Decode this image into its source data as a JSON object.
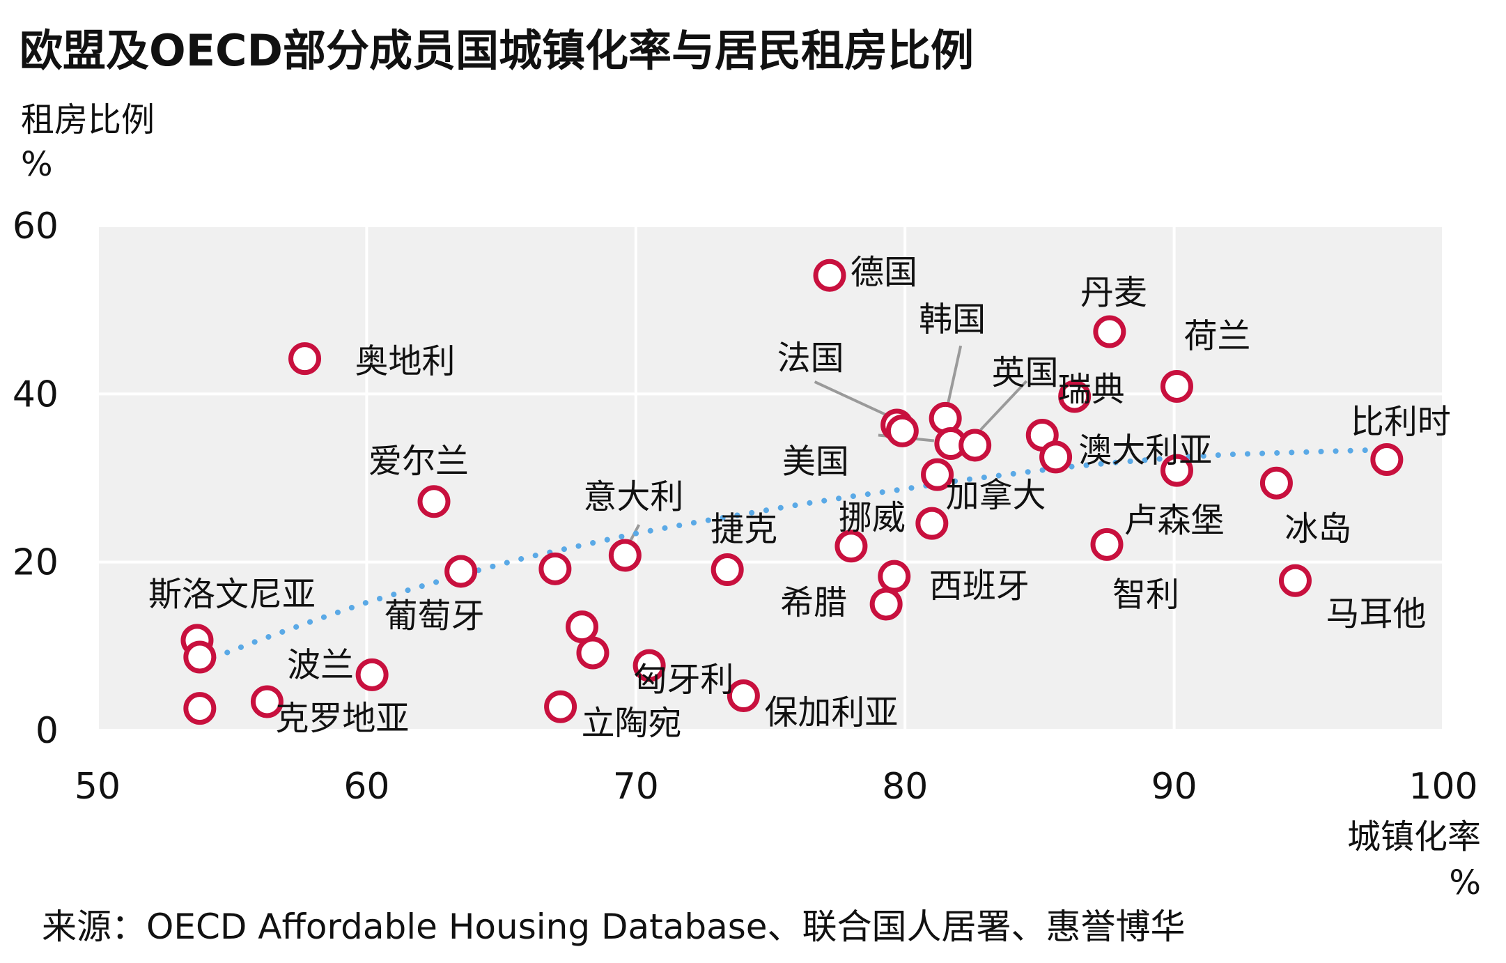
{
  "chart_data": {
    "type": "scatter",
    "title": "欧盟及OECD部分成员国城镇化率与居民租房比例",
    "ylabel": "租房比例",
    "yunit": "%",
    "xlabel": "城镇化率",
    "xunit": "%",
    "xlim": [
      50,
      100
    ],
    "ylim": [
      0,
      60
    ],
    "xticks": [
      "50",
      "60",
      "70",
      "80",
      "90",
      "100"
    ],
    "yticks": [
      "0",
      "20",
      "40",
      "60"
    ],
    "grid": true,
    "colors": {
      "marker": "#c8103e",
      "trend": "#5aa9e6",
      "plot_bg": "#f0f0f0",
      "grid": "#ffffff"
    },
    "points": [
      {
        "label": "德国",
        "x": 77.2,
        "y": 54.1
      },
      {
        "label": "韩国",
        "x": 81.5,
        "y": 37.1
      },
      {
        "label": "丹麦",
        "x": 87.6,
        "y": 47.4
      },
      {
        "label": "荷兰",
        "x": 90.1,
        "y": 40.9
      },
      {
        "label": "奥地利",
        "x": 57.7,
        "y": 44.2
      },
      {
        "label": "法国",
        "x": 79.7,
        "y": 36.3
      },
      {
        "label": "",
        "x": 79.9,
        "y": 35.6
      },
      {
        "label": "美国",
        "x": 81.7,
        "y": 34.1
      },
      {
        "label": "英国",
        "x": 82.6,
        "y": 33.9
      },
      {
        "label": "瑞典",
        "x": 86.3,
        "y": 39.7
      },
      {
        "label": "澳大利亚",
        "x": 85.1,
        "y": 35.1
      },
      {
        "label": "",
        "x": 85.6,
        "y": 32.5
      },
      {
        "label": "比利时",
        "x": 97.9,
        "y": 32.2
      },
      {
        "label": "爱尔兰",
        "x": 62.5,
        "y": 27.2
      },
      {
        "label": "加拿大",
        "x": 81.2,
        "y": 30.4
      },
      {
        "label": "卢森堡",
        "x": 90.1,
        "y": 30.9
      },
      {
        "label": "冰岛",
        "x": 93.8,
        "y": 29.4
      },
      {
        "label": "意大利",
        "x": 69.6,
        "y": 20.8
      },
      {
        "label": "挪威",
        "x": 81.0,
        "y": 24.6
      },
      {
        "label": "捷克",
        "x": 73.4,
        "y": 19.1
      },
      {
        "label": "",
        "x": 78.0,
        "y": 21.9
      },
      {
        "label": "智利",
        "x": 87.5,
        "y": 22.1
      },
      {
        "label": "斯洛文尼亚",
        "x": 53.7,
        "y": 10.7
      },
      {
        "label": "",
        "x": 53.8,
        "y": 8.7
      },
      {
        "label": "葡萄牙",
        "x": 63.5,
        "y": 18.9
      },
      {
        "label": "",
        "x": 67.0,
        "y": 19.2
      },
      {
        "label": "希腊",
        "x": 79.3,
        "y": 15.0
      },
      {
        "label": "西班牙",
        "x": 79.6,
        "y": 18.3
      },
      {
        "label": "马耳他",
        "x": 94.5,
        "y": 17.8
      },
      {
        "label": "匈牙利",
        "x": 68.0,
        "y": 12.3
      },
      {
        "label": "",
        "x": 68.4,
        "y": 9.2
      },
      {
        "label": "",
        "x": 70.5,
        "y": 7.7
      },
      {
        "label": "波兰",
        "x": 60.2,
        "y": 6.6
      },
      {
        "label": "克罗地亚",
        "x": 56.3,
        "y": 3.4
      },
      {
        "label": "",
        "x": 53.8,
        "y": 2.6
      },
      {
        "label": "立陶宛",
        "x": 67.2,
        "y": 2.8
      },
      {
        "label": "保加利亚",
        "x": 74.0,
        "y": 4.1
      }
    ],
    "trendline": {
      "style": "dotted",
      "x": [
        53.8,
        56,
        58,
        60,
        62,
        64,
        66,
        68,
        70,
        72,
        74,
        76,
        78,
        80,
        82,
        84,
        86,
        88,
        90,
        92,
        94,
        96,
        98
      ],
      "y": [
        8.0,
        10.7,
        13.0,
        15.2,
        17.1,
        18.9,
        20.6,
        22.0,
        23.4,
        24.6,
        25.7,
        26.8,
        27.8,
        28.7,
        29.7,
        30.5,
        31.3,
        31.9,
        32.4,
        32.8,
        33.0,
        33.2,
        33.4
      ]
    }
  },
  "source": "来源：OECD Affordable Housing Database、联合国人居署、惠誉博华"
}
